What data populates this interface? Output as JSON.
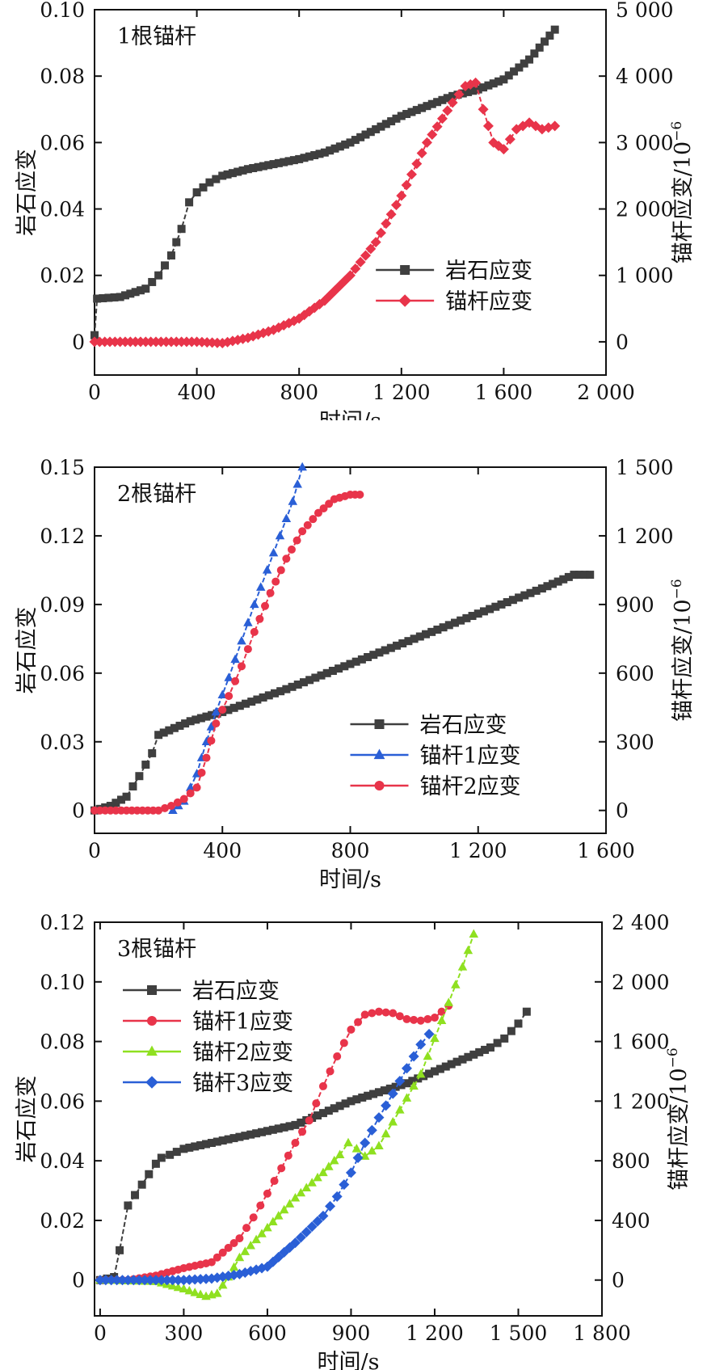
{
  "colors": {
    "rock": "#3f3f3f",
    "bolt_red": "#e8344a",
    "bolt_blue": "#2a5fd6",
    "bolt_green": "#8fe020",
    "axis": "#111111"
  },
  "chart_data": [
    {
      "type": "line",
      "title": "1根锚杆",
      "xlabel": "时间/s",
      "ylabel": "岩石应变",
      "y2label": "锚杆应变/10",
      "y2label_exp": "−6",
      "xlim": [
        0,
        2000
      ],
      "ylim": [
        0,
        0.1
      ],
      "ylim_display_min": -0.01,
      "y2lim": [
        0,
        5000
      ],
      "xticks": [
        0,
        400,
        800,
        1200,
        1600,
        2000
      ],
      "xtick_labels": [
        "0",
        "400",
        "800",
        "1 200",
        "1 600",
        "2 000"
      ],
      "yticks": [
        0,
        0.02,
        0.04,
        0.06,
        0.08,
        0.1
      ],
      "ytick_labels": [
        "0",
        "0.02",
        "0.04",
        "0.06",
        "0.08",
        "0.10"
      ],
      "y2ticks": [
        0,
        1000,
        2000,
        3000,
        4000,
        5000
      ],
      "y2tick_labels": [
        "0",
        "1 000",
        "2 000",
        "3 000",
        "4 000",
        "5 000"
      ],
      "legend_position": "lower-right",
      "series": [
        {
          "name": "岩石应变",
          "axis": "left",
          "color": "rock",
          "marker": "square",
          "x": [
            0,
            10,
            100,
            200,
            250,
            300,
            340,
            370,
            400,
            450,
            500,
            600,
            700,
            800,
            900,
            1000,
            1100,
            1200,
            1300,
            1400,
            1500,
            1600,
            1700,
            1800
          ],
          "y": [
            0.002,
            0.013,
            0.0135,
            0.016,
            0.02,
            0.026,
            0.034,
            0.042,
            0.045,
            0.048,
            0.05,
            0.052,
            0.0535,
            0.055,
            0.057,
            0.06,
            0.064,
            0.068,
            0.071,
            0.074,
            0.076,
            0.079,
            0.085,
            0.094
          ]
        },
        {
          "name": "锚杆应变",
          "axis": "right",
          "color": "bolt_red",
          "marker": "diamond",
          "x": [
            0,
            100,
            200,
            300,
            400,
            500,
            600,
            700,
            800,
            900,
            1000,
            1100,
            1200,
            1300,
            1400,
            1450,
            1490,
            1520,
            1560,
            1600,
            1650,
            1700,
            1750,
            1800
          ],
          "y": [
            0,
            0,
            0,
            0,
            0,
            -20,
            60,
            180,
            350,
            620,
            1000,
            1500,
            2200,
            3000,
            3600,
            3850,
            3900,
            3500,
            3000,
            2900,
            3200,
            3300,
            3200,
            3250
          ]
        }
      ]
    },
    {
      "type": "line",
      "title": "2根锚杆",
      "xlabel": "时间/s",
      "ylabel": "岩石应变",
      "y2label": "锚杆应变/10",
      "y2label_exp": "−6",
      "xlim": [
        0,
        1600
      ],
      "ylim": [
        0,
        0.15
      ],
      "ylim_display_min": -0.01,
      "y2lim": [
        0,
        1500
      ],
      "xticks": [
        0,
        400,
        800,
        1200,
        1600
      ],
      "xtick_labels": [
        "0",
        "400",
        "800",
        "1 200",
        "1 600"
      ],
      "yticks": [
        0,
        0.03,
        0.06,
        0.09,
        0.12,
        0.15
      ],
      "ytick_labels": [
        "0",
        "0.03",
        "0.06",
        "0.09",
        "0.12",
        "0.15"
      ],
      "y2ticks": [
        0,
        300,
        600,
        900,
        1200,
        1500
      ],
      "y2tick_labels": [
        "0",
        "300",
        "600",
        "900",
        "1 200",
        "1 500"
      ],
      "legend_position": "lower-right",
      "series": [
        {
          "name": "岩石应变",
          "axis": "left",
          "color": "rock",
          "marker": "square",
          "x": [
            0,
            50,
            100,
            140,
            180,
            200,
            250,
            300,
            400,
            600,
            800,
            1000,
            1200,
            1400,
            1500,
            1550
          ],
          "y": [
            0,
            0.002,
            0.006,
            0.015,
            0.025,
            0.033,
            0.036,
            0.039,
            0.043,
            0.053,
            0.064,
            0.075,
            0.086,
            0.097,
            0.103,
            0.103
          ]
        },
        {
          "name": "锚杆1应变",
          "axis": "right",
          "color": "bolt_blue",
          "marker": "triangle",
          "x": [
            245,
            280,
            320,
            350,
            380,
            420,
            460,
            500,
            540,
            580,
            620,
            650
          ],
          "y": [
            0,
            40,
            160,
            300,
            430,
            580,
            740,
            900,
            1050,
            1200,
            1350,
            1500
          ]
        },
        {
          "name": "锚杆2应变",
          "axis": "right",
          "color": "bolt_red",
          "marker": "circle",
          "x": [
            0,
            100,
            200,
            240,
            280,
            320,
            350,
            380,
            420,
            460,
            500,
            550,
            600,
            650,
            700,
            750,
            800,
            830
          ],
          "y": [
            0,
            0,
            0,
            20,
            50,
            100,
            230,
            380,
            500,
            630,
            780,
            950,
            1100,
            1220,
            1300,
            1360,
            1380,
            1380
          ]
        }
      ]
    },
    {
      "type": "line",
      "title": "3根锚杆",
      "xlabel": "时间/s",
      "ylabel": "岩石应变",
      "y2label": "锚杆应变/10",
      "y2label_exp": "−6",
      "xlim": [
        0,
        1800
      ],
      "xlim_display_min": -20,
      "ylim": [
        0,
        0.12
      ],
      "ylim_display_min": -0.012,
      "y2lim": [
        0,
        2400
      ],
      "xticks": [
        0,
        300,
        600,
        900,
        1200,
        1500,
        1800
      ],
      "xtick_labels": [
        "0",
        "300",
        "600",
        "900",
        "1 200",
        "1 500",
        "1 800"
      ],
      "yticks": [
        0,
        0.02,
        0.04,
        0.06,
        0.08,
        0.1,
        0.12
      ],
      "ytick_labels": [
        "0",
        "0.02",
        "0.04",
        "0.06",
        "0.08",
        "0.10",
        "0.12"
      ],
      "y2ticks": [
        0,
        400,
        800,
        1200,
        1600,
        2000,
        2400
      ],
      "y2tick_labels": [
        "0",
        "400",
        "800",
        "1 200",
        "1 600",
        "2 000",
        "2 400"
      ],
      "legend_position": "top-left",
      "series": [
        {
          "name": "岩石应变",
          "axis": "left",
          "color": "rock",
          "marker": "square",
          "x": [
            0,
            50,
            70,
            100,
            150,
            200,
            220,
            250,
            300,
            400,
            500,
            600,
            700,
            800,
            900,
            1000,
            1100,
            1200,
            1300,
            1400,
            1450,
            1500,
            1530
          ],
          "y": [
            0,
            0.001,
            0.01,
            0.025,
            0.032,
            0.039,
            0.041,
            0.042,
            0.044,
            0.046,
            0.048,
            0.05,
            0.052,
            0.056,
            0.06,
            0.063,
            0.066,
            0.07,
            0.074,
            0.078,
            0.081,
            0.086,
            0.09
          ]
        },
        {
          "name": "锚杆1应变",
          "axis": "right",
          "color": "bolt_red",
          "marker": "circle",
          "x": [
            0,
            100,
            200,
            300,
            400,
            500,
            550,
            600,
            650,
            700,
            750,
            800,
            850,
            900,
            950,
            1000,
            1050,
            1100,
            1150,
            1200,
            1250
          ],
          "y": [
            0,
            0,
            30,
            80,
            120,
            280,
            420,
            580,
            750,
            920,
            1070,
            1300,
            1500,
            1680,
            1780,
            1800,
            1790,
            1750,
            1740,
            1760,
            1840
          ]
        },
        {
          "name": "锚杆2应变",
          "axis": "right",
          "color": "bolt_green",
          "marker": "triangle",
          "x": [
            0,
            200,
            300,
            380,
            420,
            460,
            500,
            600,
            700,
            800,
            860,
            890,
            920,
            950,
            1000,
            1050,
            1100,
            1150,
            1200,
            1250,
            1300,
            1340
          ],
          "y": [
            0,
            -10,
            -60,
            -110,
            -90,
            20,
            150,
            350,
            550,
            720,
            840,
            920,
            880,
            830,
            900,
            1060,
            1220,
            1380,
            1620,
            1860,
            2100,
            2320
          ]
        },
        {
          "name": "锚杆3应变",
          "axis": "right",
          "color": "bolt_blue",
          "marker": "diamond",
          "x": [
            0,
            200,
            300,
            400,
            500,
            600,
            700,
            800,
            850,
            900,
            950,
            1000,
            1050,
            1100,
            1150,
            1180
          ],
          "y": [
            0,
            0,
            0,
            10,
            40,
            90,
            250,
            430,
            560,
            720,
            920,
            1090,
            1250,
            1420,
            1580,
            1650
          ]
        }
      ]
    }
  ]
}
